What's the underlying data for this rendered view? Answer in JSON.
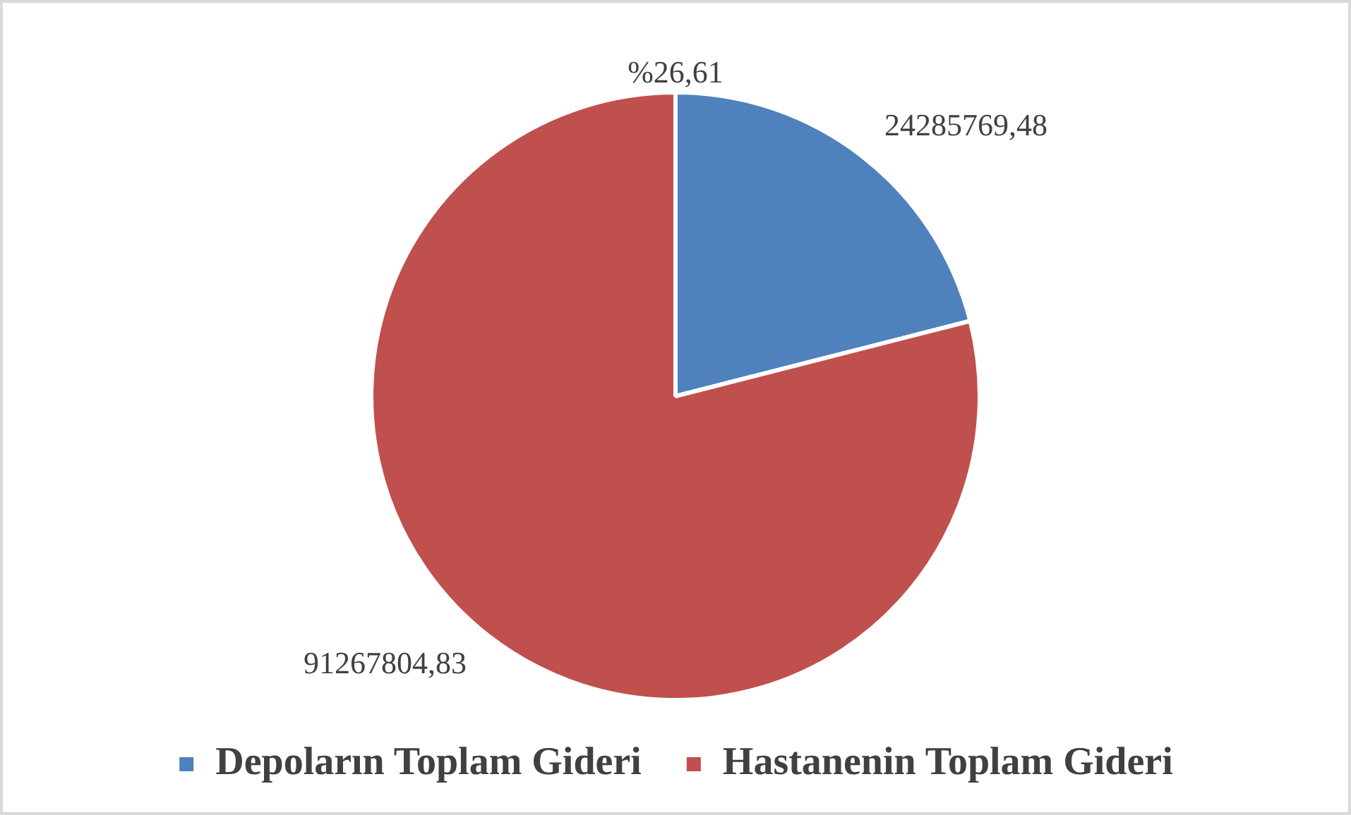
{
  "chart_data": {
    "type": "pie",
    "categories": [
      "Depoların Toplam Gideri",
      "Hastanenin Toplam Gideri"
    ],
    "values": [
      24285769.48,
      91267804.83
    ],
    "colors": [
      "#4f81bd",
      "#c0504d"
    ],
    "value_labels": [
      "24285769,48",
      "91267804,83"
    ],
    "annotations": [
      "%26,61"
    ],
    "legend": "bottom"
  }
}
